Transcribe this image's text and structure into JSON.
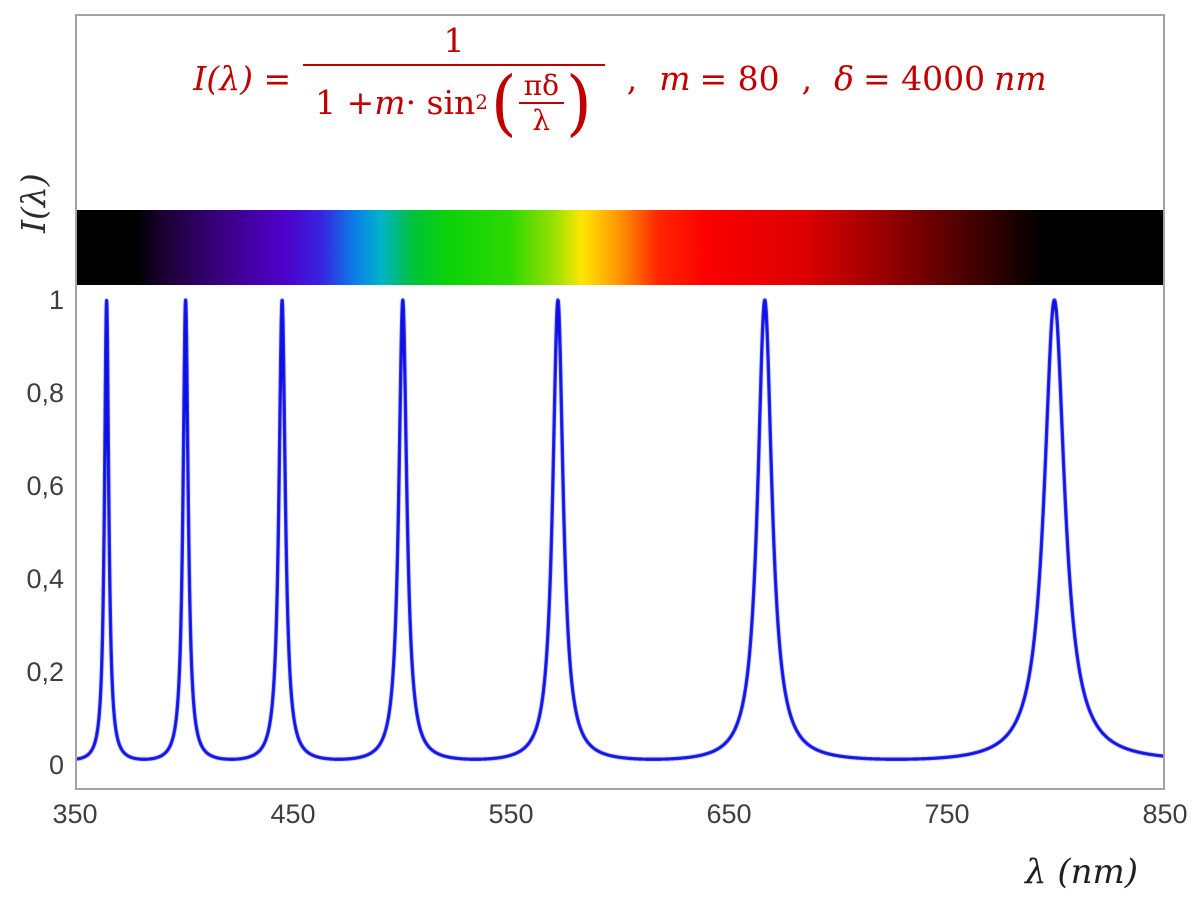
{
  "figure": {
    "y_axis_title": "I(λ)",
    "x_axis_title": "λ  (nm)"
  },
  "formula": {
    "color": "#c00000",
    "lhs": "I(λ)",
    "equals": "=",
    "numerator": "1",
    "den_1": "1 + ",
    "den_m": "m",
    "den_2": " · sin",
    "den_sup": "2",
    "lparen": "(",
    "rparen": ")",
    "inner_num": "πδ",
    "inner_den": "λ",
    "comma1": ",",
    "m_sym": "m",
    "m_rest": "= 80",
    "comma2": ",",
    "d_sym": "δ",
    "d_rest": "= 4000",
    "d_unit": "nm"
  },
  "chart_data": {
    "type": "line",
    "title": "",
    "xlabel": "λ  (nm)",
    "ylabel": "I(λ)",
    "xlim": [
      350,
      850
    ],
    "ylim": [
      0,
      1
    ],
    "grid": false,
    "legend": "none",
    "x_tick_labels": [
      "350",
      "450",
      "550",
      "650",
      "750",
      "850"
    ],
    "y_tick_labels": [
      "0",
      "0,2",
      "0,4",
      "0,6",
      "0,8",
      "1"
    ],
    "series": [
      {
        "name": "I(λ) = 1 / (1 + m·sin²(πδ/λ))",
        "color": "#0e10e6",
        "params": {
          "m": 80,
          "delta_nm": 4000
        },
        "peaks_nm": [
          363.6,
          400.0,
          444.4,
          500.0,
          571.4,
          666.7,
          800.0
        ],
        "peak_value": 1,
        "baseline_value": 0.0123
      }
    ],
    "spectrum_bar": {
      "range_nm": [
        350,
        850
      ],
      "stops": [
        {
          "pos": 0,
          "color": "#000000"
        },
        {
          "pos": 5.5,
          "color": "#010102"
        },
        {
          "pos": 8,
          "color": "#1b0033"
        },
        {
          "pos": 12,
          "color": "#33006e"
        },
        {
          "pos": 16,
          "color": "#4400a4"
        },
        {
          "pos": 19,
          "color": "#4e00c8"
        },
        {
          "pos": 22.5,
          "color": "#3823e0"
        },
        {
          "pos": 25.5,
          "color": "#0b7ce8"
        },
        {
          "pos": 28,
          "color": "#00b4c8"
        },
        {
          "pos": 31,
          "color": "#00c238"
        },
        {
          "pos": 34,
          "color": "#0bd20b"
        },
        {
          "pos": 40,
          "color": "#2ed800"
        },
        {
          "pos": 44,
          "color": "#9be000"
        },
        {
          "pos": 46.5,
          "color": "#ffe600"
        },
        {
          "pos": 50,
          "color": "#ff9500"
        },
        {
          "pos": 53.5,
          "color": "#ff2600"
        },
        {
          "pos": 58,
          "color": "#fb0000"
        },
        {
          "pos": 67,
          "color": "#dc0000"
        },
        {
          "pos": 74,
          "color": "#9b0000"
        },
        {
          "pos": 80,
          "color": "#5e0000"
        },
        {
          "pos": 85,
          "color": "#2a0000"
        },
        {
          "pos": 89,
          "color": "#000000"
        },
        {
          "pos": 100,
          "color": "#000000"
        }
      ]
    }
  }
}
